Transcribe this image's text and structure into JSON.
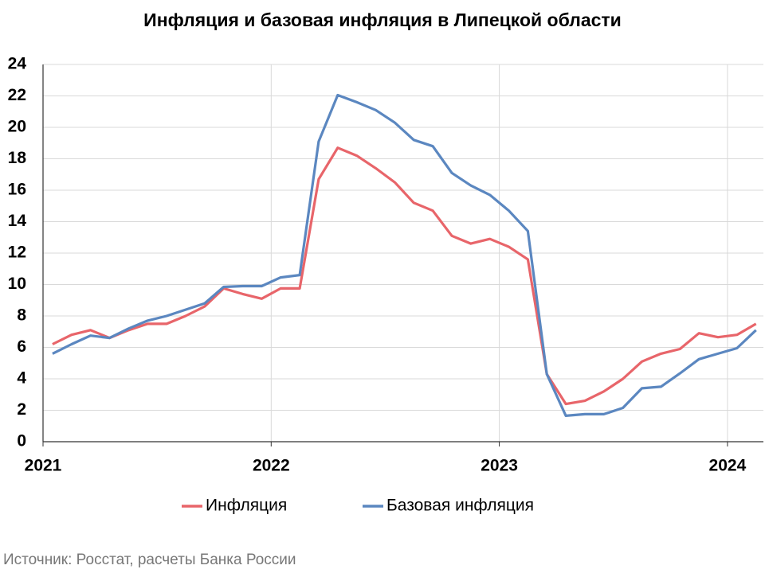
{
  "chart_data": {
    "type": "line",
    "title": "Инфляция и базовая инфляция в Липецкой области",
    "source": "Источник: Росстат, расчеты Банка России",
    "categories": [
      "2021",
      null,
      null,
      null,
      null,
      null,
      null,
      null,
      null,
      null,
      null,
      null,
      "2022",
      null,
      null,
      null,
      null,
      null,
      null,
      null,
      null,
      null,
      null,
      null,
      "2023",
      null,
      null,
      null,
      null,
      null,
      null,
      null,
      null,
      null,
      null,
      null,
      "2024",
      null
    ],
    "series": [
      {
        "name": "Инфляция",
        "color": "#e8656a",
        "values": [
          6.2,
          6.8,
          7.1,
          6.6,
          7.1,
          7.5,
          7.5,
          8.0,
          8.6,
          9.75,
          9.4,
          9.1,
          9.75,
          9.75,
          16.7,
          18.7,
          18.2,
          17.4,
          16.5,
          15.2,
          14.7,
          13.1,
          12.6,
          12.9,
          12.4,
          11.6,
          4.3,
          2.4,
          2.6,
          3.2,
          4.0,
          5.1,
          5.6,
          5.9,
          6.9,
          6.65,
          6.8,
          7.5
        ]
      },
      {
        "name": "Базовая инфляция",
        "color": "#5b87c0",
        "values": [
          5.6,
          6.2,
          6.75,
          6.6,
          7.2,
          7.7,
          8.0,
          8.4,
          8.8,
          9.85,
          9.9,
          9.9,
          10.45,
          10.6,
          19.1,
          22.05,
          21.6,
          21.1,
          20.3,
          19.2,
          18.8,
          17.1,
          16.3,
          15.7,
          14.7,
          13.4,
          4.3,
          1.65,
          1.75,
          1.75,
          2.15,
          3.4,
          3.5,
          4.35,
          5.25,
          5.6,
          5.95,
          7.1
        ]
      }
    ],
    "ylim": [
      0,
      24
    ],
    "yticks": [
      0,
      2,
      4,
      6,
      8,
      10,
      12,
      14,
      16,
      18,
      20,
      22,
      24
    ],
    "grid": true,
    "legend": "bottom"
  }
}
